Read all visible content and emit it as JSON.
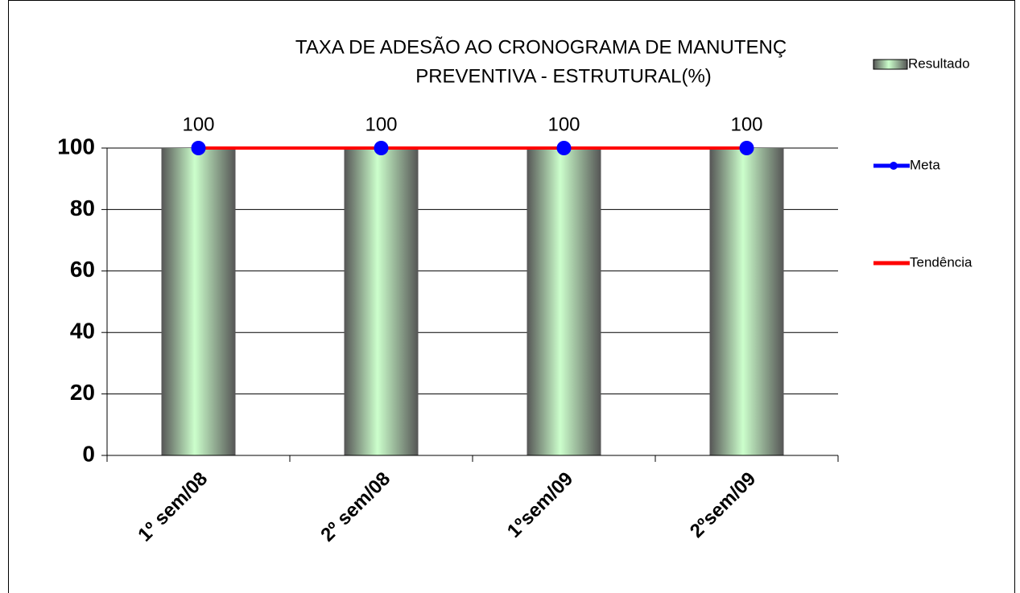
{
  "chart_data": {
    "type": "bar",
    "title_lines": [
      "TAXA DE ADESÃO AO CRONOGRAMA DE MANUTENÇ",
      "PREVENTIVA - ESTRUTURAL(%)"
    ],
    "categories": [
      "1º sem/08",
      "2º sem/08",
      "1ºsem/09",
      "2ºsem/09"
    ],
    "series": [
      {
        "name": "Resultado",
        "type": "bar",
        "color": "#ccffcc",
        "values": [
          100,
          100,
          100,
          100
        ]
      },
      {
        "name": "Meta",
        "type": "line",
        "marker": true,
        "color": "#0000ff",
        "values": [
          100,
          100,
          100,
          100
        ]
      },
      {
        "name": "Tendência",
        "type": "line",
        "marker": false,
        "color": "#ff0000",
        "values": [
          100,
          100,
          100,
          100
        ]
      }
    ],
    "ylim": [
      0,
      100
    ],
    "yticks": [
      0,
      20,
      40,
      60,
      80,
      100
    ],
    "grid": true,
    "legend": "right"
  }
}
